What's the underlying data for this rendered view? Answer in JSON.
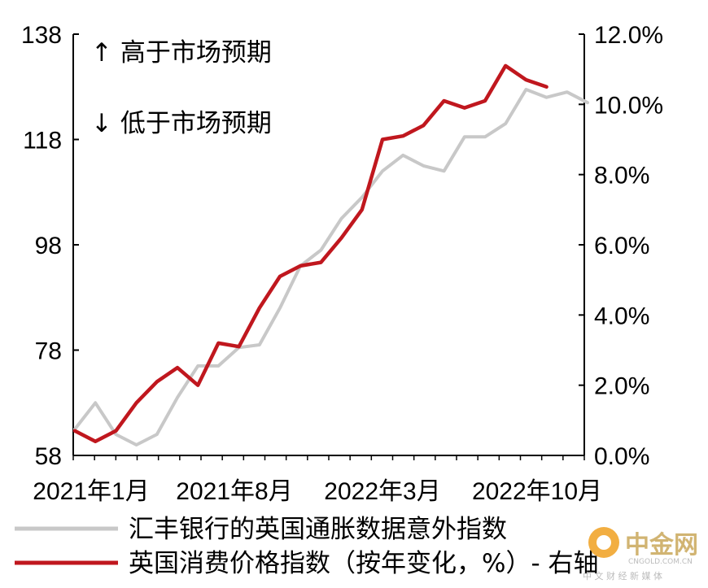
{
  "chart_data": {
    "type": "line",
    "x_labels": [
      "2021年1月",
      "2021年8月",
      "2022年3月",
      "2022年10月"
    ],
    "left_axis": {
      "range": [
        58,
        138
      ],
      "ticks": [
        "58",
        "78",
        "98",
        "118",
        "138"
      ]
    },
    "right_axis": {
      "range": [
        0,
        12
      ],
      "ticks": [
        "0.0%",
        "2.0%",
        "4.0%",
        "6.0%",
        "8.0%",
        "10.0%",
        "12.0%"
      ]
    },
    "annotations": [
      "↑ 高于市场预期",
      "↓ 低于市场预期"
    ],
    "series": [
      {
        "name": "汇丰银行的英国通胀数据意外指数",
        "axis": "left",
        "color": "#c8c8c8",
        "x": [
          0,
          1,
          2,
          3,
          4,
          5,
          6,
          7,
          8,
          9,
          10,
          11,
          12,
          13,
          14,
          15,
          16,
          17,
          18,
          19,
          20,
          21,
          22,
          23,
          24,
          25
        ],
        "values": [
          63,
          68,
          62,
          60,
          62,
          69,
          75,
          75,
          78.5,
          79,
          86,
          94,
          97,
          103,
          107,
          112,
          115,
          113,
          112,
          118.5,
          118.5,
          121,
          127.5,
          126,
          127,
          125
        ]
      },
      {
        "name": "英国消费价格指数（按年变化，%）- 右轴",
        "axis": "right",
        "color": "#c0171e",
        "x": [
          0,
          1,
          2,
          3,
          4,
          5,
          6,
          7,
          8,
          9,
          10,
          11,
          12,
          13,
          14,
          15,
          16,
          17,
          18,
          19,
          20,
          21,
          22,
          23
        ],
        "values": [
          0.7,
          0.4,
          0.7,
          1.5,
          2.1,
          2.5,
          2.0,
          3.2,
          3.1,
          4.2,
          5.1,
          5.4,
          5.5,
          6.2,
          7.0,
          9.0,
          9.1,
          9.4,
          10.1,
          9.9,
          10.1,
          11.1,
          10.7,
          10.5
        ]
      }
    ]
  },
  "watermark": {
    "brand": "中金网",
    "url": "CNGOLD.COM.CN",
    "tagline": "中 文 财 经 新 媒 体"
  }
}
